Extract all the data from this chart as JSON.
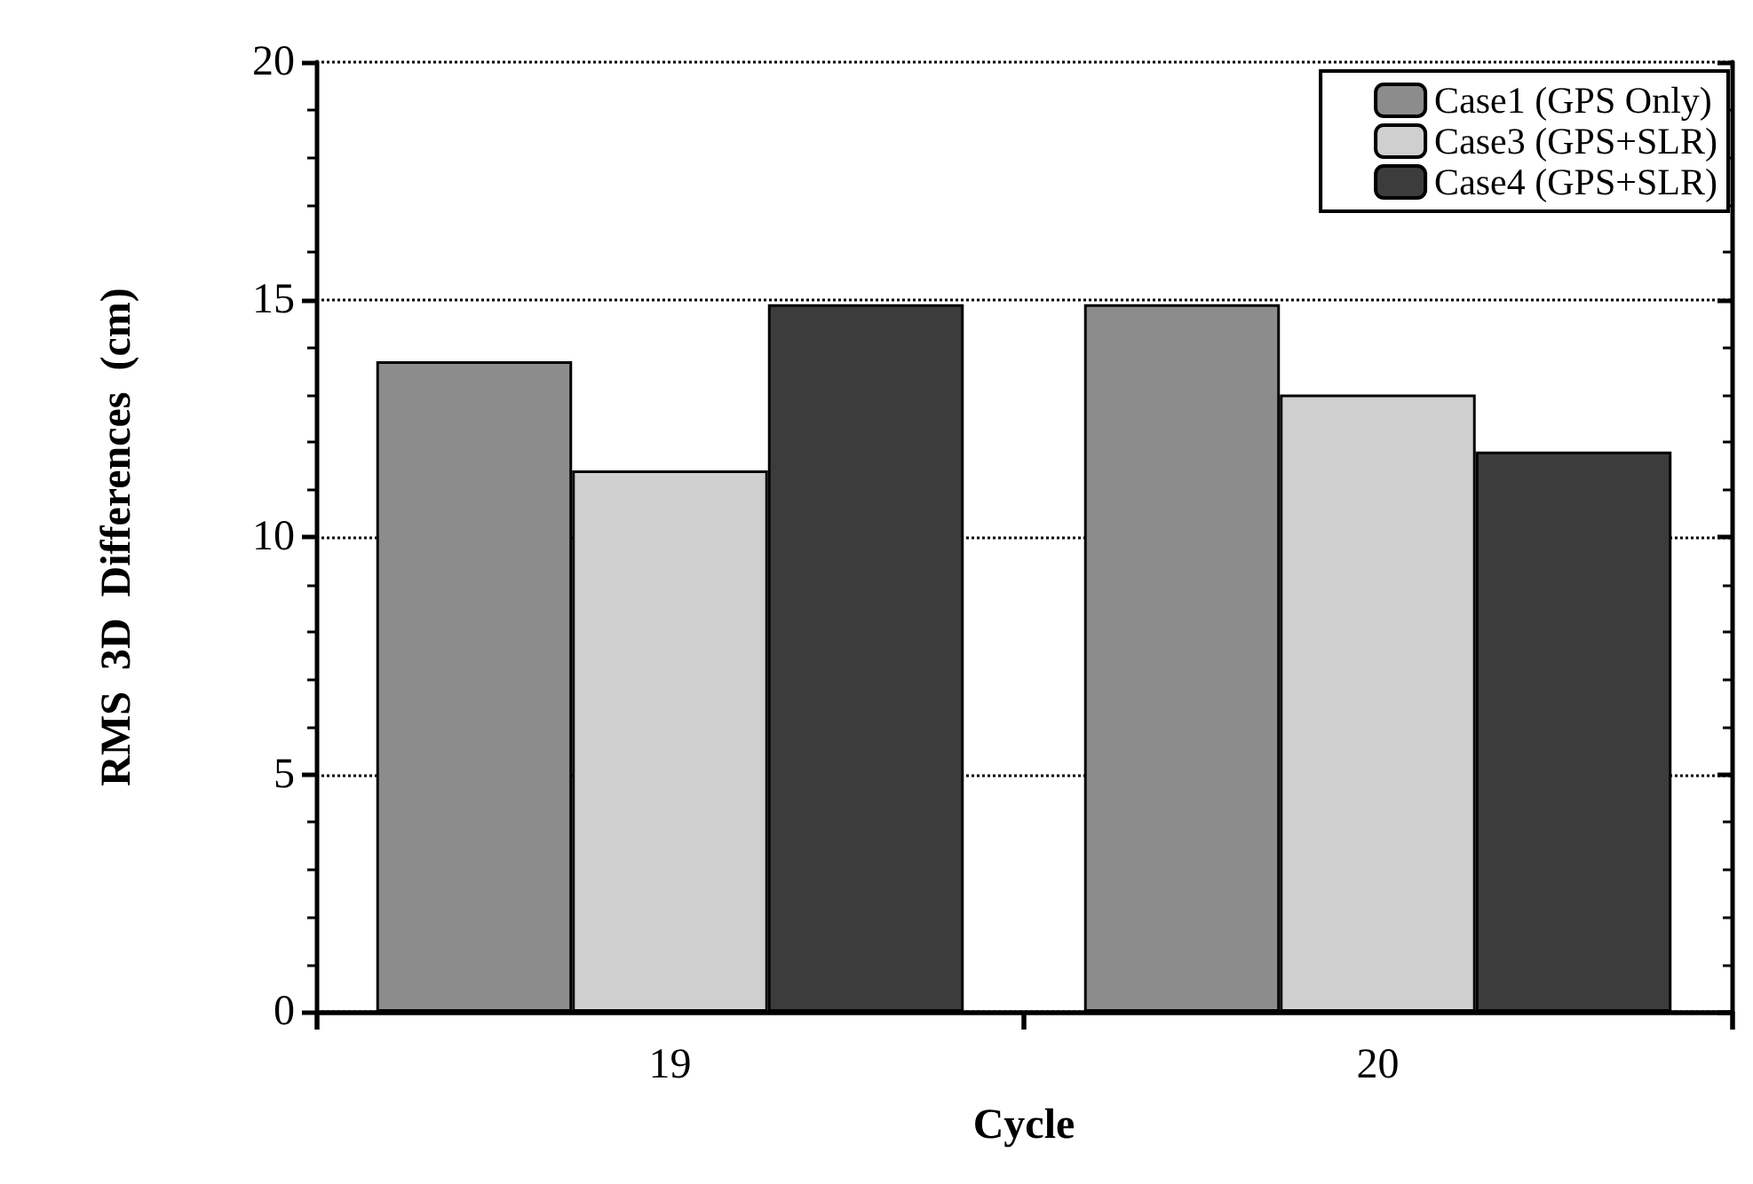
{
  "chart_data": {
    "type": "bar",
    "xlabel": "Cycle",
    "ylabel": "RMS  3D  Differences  (cm)",
    "categories": [
      "19",
      "20"
    ],
    "series": [
      {
        "name": "Case1 (GPS Only)",
        "color": "#8c8c8c",
        "values": [
          13.7,
          14.9
        ]
      },
      {
        "name": "Case3 (GPS+SLR)",
        "color": "#cfcfcf",
        "values": [
          11.4,
          13.0
        ]
      },
      {
        "name": "Case4 (GPS+SLR)",
        "color": "#3c3c3c",
        "values": [
          14.9,
          11.8
        ]
      }
    ],
    "ylim": [
      0,
      20
    ],
    "yticks": [
      0,
      5,
      10,
      15,
      20
    ],
    "grid": "y",
    "legend": "top right"
  }
}
